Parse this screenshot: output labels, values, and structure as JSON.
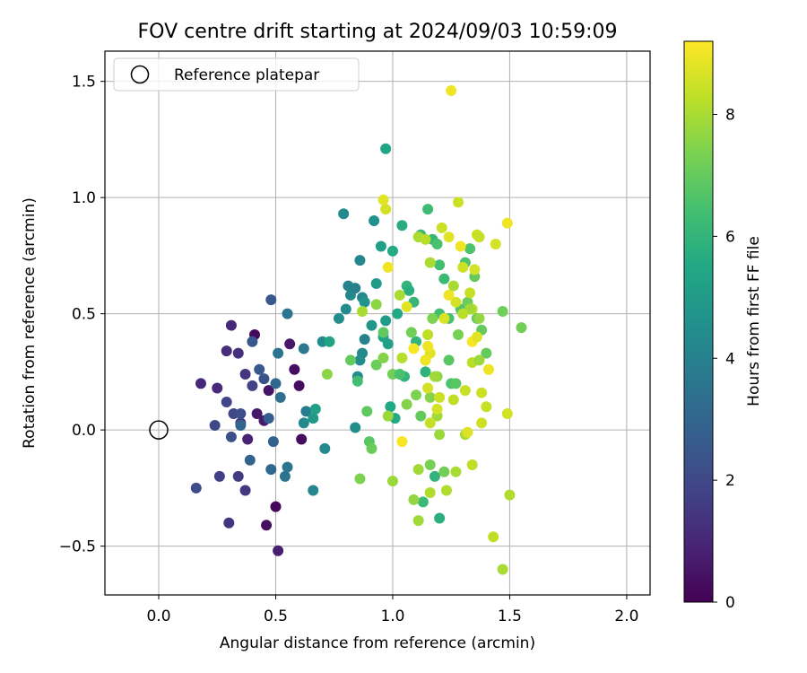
{
  "chart_data": {
    "type": "scatter",
    "title": "FOV centre drift starting at 2024/09/03 10:59:09",
    "xlabel": "Angular distance from reference (arcmin)",
    "ylabel": "Rotation from reference (arcmin)",
    "xlim": [
      -0.23,
      2.1
    ],
    "ylim": [
      -0.71,
      1.63
    ],
    "x_ticks": [
      0.0,
      0.5,
      1.0,
      1.5,
      2.0
    ],
    "x_tick_labels": [
      "0.0",
      "0.5",
      "1.0",
      "1.5",
      "2.0"
    ],
    "y_ticks": [
      -0.5,
      0.0,
      0.5,
      1.0,
      1.5
    ],
    "y_tick_labels": [
      "−0.5",
      "0.0",
      "0.5",
      "1.0",
      "1.5"
    ],
    "grid": true,
    "legend": {
      "placement": "top-left",
      "entries": [
        "Reference platepar"
      ]
    },
    "reference_point": {
      "x": 0.0,
      "y": 0.0,
      "label": "Reference platepar"
    },
    "colorbar": {
      "label": "Hours from first FF file",
      "colormap": "viridis",
      "range": [
        0,
        9.2
      ],
      "ticks": [
        0,
        2,
        4,
        6,
        8
      ],
      "tick_labels": [
        "0",
        "2",
        "4",
        "6",
        "8"
      ]
    },
    "points": [
      [
        0.41,
        0.41,
        0.2
      ],
      [
        0.5,
        -0.33,
        0.2
      ],
      [
        0.46,
        -0.41,
        0.4
      ],
      [
        0.58,
        0.26,
        0.3
      ],
      [
        0.6,
        0.19,
        0.3
      ],
      [
        0.61,
        -0.04,
        0.3
      ],
      [
        0.51,
        -0.52,
        0.8
      ],
      [
        0.56,
        0.37,
        0.6
      ],
      [
        0.45,
        0.04,
        0.7
      ],
      [
        0.47,
        0.17,
        0.5
      ],
      [
        0.42,
        0.07,
        0.6
      ],
      [
        0.38,
        -0.04,
        0.9
      ],
      [
        0.31,
        0.45,
        1.0
      ],
      [
        0.18,
        0.2,
        1.0
      ],
      [
        0.25,
        0.18,
        1.1
      ],
      [
        0.29,
        0.34,
        1.2
      ],
      [
        0.34,
        0.33,
        1.3
      ],
      [
        0.37,
        0.24,
        1.4
      ],
      [
        0.35,
        0.03,
        1.5
      ],
      [
        0.34,
        -0.2,
        1.6
      ],
      [
        0.37,
        -0.26,
        1.5
      ],
      [
        0.3,
        -0.4,
        1.4
      ],
      [
        0.26,
        -0.2,
        1.7
      ],
      [
        0.4,
        0.19,
        1.8
      ],
      [
        0.29,
        0.12,
        1.9
      ],
      [
        0.32,
        0.07,
        2.0
      ],
      [
        0.35,
        0.07,
        2.2
      ],
      [
        0.31,
        -0.03,
        2.2
      ],
      [
        0.24,
        0.02,
        2.0
      ],
      [
        0.16,
        -0.25,
        2.1
      ],
      [
        0.4,
        0.38,
        2.5
      ],
      [
        0.45,
        0.22,
        2.4
      ],
      [
        0.48,
        0.56,
        2.5
      ],
      [
        0.43,
        0.26,
        2.6
      ],
      [
        0.47,
        0.05,
        2.7
      ],
      [
        0.5,
        0.2,
        3.1
      ],
      [
        0.35,
        0.02,
        3.0
      ],
      [
        0.39,
        -0.13,
        2.9
      ],
      [
        0.49,
        -0.05,
        2.9
      ],
      [
        0.48,
        -0.17,
        3.1
      ],
      [
        0.52,
        0.14,
        3.3
      ],
      [
        0.55,
        0.5,
        3.6
      ],
      [
        0.51,
        0.33,
        3.5
      ],
      [
        0.55,
        -0.16,
        3.6
      ],
      [
        0.54,
        -0.2,
        3.5
      ],
      [
        0.62,
        0.35,
        3.7
      ],
      [
        0.63,
        0.08,
        3.8
      ],
      [
        0.62,
        0.03,
        4.3
      ],
      [
        0.66,
        -0.26,
        4.2
      ],
      [
        0.71,
        -0.08,
        4.3
      ],
      [
        0.7,
        0.38,
        4.4
      ],
      [
        0.66,
        0.05,
        4.9
      ],
      [
        0.67,
        0.09,
        5.2
      ],
      [
        0.73,
        0.38,
        5.3
      ],
      [
        0.79,
        0.93,
        4.3
      ],
      [
        0.77,
        0.48,
        4.5
      ],
      [
        0.8,
        0.52,
        4.4
      ],
      [
        0.82,
        0.58,
        4.3
      ],
      [
        0.81,
        0.62,
        4.1
      ],
      [
        0.84,
        0.61,
        4.0
      ],
      [
        0.87,
        0.57,
        4.2
      ],
      [
        0.86,
        0.73,
        4.2
      ],
      [
        0.88,
        0.39,
        4.1
      ],
      [
        0.87,
        0.33,
        4.3
      ],
      [
        0.86,
        0.3,
        4.4
      ],
      [
        0.85,
        0.23,
        4.4
      ],
      [
        0.84,
        0.01,
        4.5
      ],
      [
        0.88,
        0.55,
        4.7
      ],
      [
        0.92,
        0.9,
        4.6
      ],
      [
        0.91,
        0.45,
        4.8
      ],
      [
        0.93,
        0.63,
        5.0
      ],
      [
        0.95,
        0.79,
        5.2
      ],
      [
        0.97,
        0.47,
        5.0
      ],
      [
        0.96,
        0.4,
        5.3
      ],
      [
        0.98,
        0.37,
        5.2
      ],
      [
        0.97,
        1.21,
        5.4
      ],
      [
        1.0,
        0.77,
        5.6
      ],
      [
        1.02,
        0.5,
        5.5
      ],
      [
        1.04,
        0.88,
        5.7
      ],
      [
        1.06,
        0.62,
        6.0
      ],
      [
        1.07,
        0.6,
        5.8
      ],
      [
        1.09,
        0.55,
        6.1
      ],
      [
        1.1,
        0.38,
        6.0
      ],
      [
        1.12,
        0.84,
        6.2
      ],
      [
        1.15,
        0.95,
        6.3
      ],
      [
        1.17,
        0.82,
        6.1
      ],
      [
        1.19,
        0.8,
        6.5
      ],
      [
        1.2,
        0.71,
        6.4
      ],
      [
        1.22,
        0.65,
        6.2
      ],
      [
        1.2,
        0.5,
        6.4
      ],
      [
        1.24,
        0.48,
        6.5
      ],
      [
        1.25,
        0.2,
        6.6
      ],
      [
        1.27,
        0.2,
        6.8
      ],
      [
        1.29,
        0.52,
        6.7
      ],
      [
        1.31,
        0.72,
        6.6
      ],
      [
        1.33,
        0.78,
        6.6
      ],
      [
        1.35,
        0.66,
        7.0
      ],
      [
        1.32,
        0.55,
        7.1
      ],
      [
        1.36,
        0.48,
        6.9
      ],
      [
        1.38,
        0.43,
        7.0
      ],
      [
        1.4,
        0.33,
        7.0
      ],
      [
        1.47,
        0.51,
        7.2
      ],
      [
        1.55,
        0.44,
        7.2
      ],
      [
        0.96,
        0.42,
        6.9
      ],
      [
        0.99,
        0.1,
        5.5
      ],
      [
        1.01,
        0.05,
        5.6
      ],
      [
        1.05,
        0.23,
        6.0
      ],
      [
        1.14,
        0.25,
        5.9
      ],
      [
        1.2,
        -0.38,
        5.8
      ],
      [
        1.13,
        -0.31,
        6.2
      ],
      [
        1.18,
        -0.2,
        6.0
      ],
      [
        1.22,
        -0.18,
        7.2
      ],
      [
        1.16,
        -0.15,
        7.3
      ],
      [
        1.12,
        0.06,
        7.0
      ],
      [
        1.16,
        0.14,
        7.5
      ],
      [
        1.19,
        0.23,
        7.6
      ],
      [
        1.1,
        0.15,
        7.4
      ],
      [
        1.14,
        0.3,
        7.3
      ],
      [
        1.24,
        0.3,
        6.8
      ],
      [
        1.28,
        0.41,
        7.3
      ],
      [
        0.82,
        0.3,
        7.0
      ],
      [
        0.85,
        0.21,
        6.4
      ],
      [
        0.89,
        0.08,
        6.9
      ],
      [
        0.9,
        -0.05,
        6.8
      ],
      [
        0.91,
        -0.08,
        7.1
      ],
      [
        0.86,
        -0.21,
        7.4
      ],
      [
        0.93,
        0.28,
        7.1
      ],
      [
        0.96,
        0.31,
        7.5
      ],
      [
        1.0,
        0.24,
        7.2
      ],
      [
        1.03,
        0.24,
        6.5
      ],
      [
        1.06,
        0.11,
        7.5
      ],
      [
        1.08,
        0.42,
        7.2
      ],
      [
        0.72,
        0.24,
        7.6
      ],
      [
        0.93,
        0.54,
        7.6
      ],
      [
        0.98,
        0.06,
        7.8
      ],
      [
        1.0,
        -0.22,
        7.8
      ],
      [
        1.09,
        -0.3,
        7.7
      ],
      [
        1.11,
        -0.39,
        7.9
      ],
      [
        1.11,
        -0.17,
        7.9
      ],
      [
        1.19,
        0.06,
        7.9
      ],
      [
        1.2,
        -0.02,
        7.8
      ],
      [
        1.23,
        -0.26,
        8.1
      ],
      [
        1.27,
        -0.18,
        8.0
      ],
      [
        1.31,
        -0.02,
        8.0
      ],
      [
        1.34,
        -0.15,
        8.3
      ],
      [
        1.38,
        0.03,
        8.5
      ],
      [
        1.43,
        -0.46,
        8.3
      ],
      [
        1.47,
        -0.6,
        8.0
      ],
      [
        1.5,
        -0.28,
        8.1
      ],
      [
        1.49,
        0.07,
        8.6
      ],
      [
        1.4,
        0.1,
        8.4
      ],
      [
        1.38,
        0.16,
        8.5
      ],
      [
        1.34,
        0.29,
        8.2
      ],
      [
        1.37,
        0.3,
        7.8
      ],
      [
        1.31,
        0.17,
        8.4
      ],
      [
        1.26,
        0.13,
        8.3
      ],
      [
        1.2,
        0.14,
        8.5
      ],
      [
        1.19,
        0.09,
        8.6
      ],
      [
        1.16,
        0.03,
        8.4
      ],
      [
        1.15,
        0.18,
        8.6
      ],
      [
        1.16,
        0.33,
        8.8
      ],
      [
        1.15,
        0.36,
        9.0
      ],
      [
        1.14,
        0.3,
        9.0
      ],
      [
        1.09,
        0.35,
        9.1
      ],
      [
        1.04,
        0.31,
        8.2
      ],
      [
        1.03,
        0.58,
        8.0
      ],
      [
        1.06,
        0.53,
        8.8
      ],
      [
        1.04,
        -0.05,
        9.1
      ],
      [
        0.98,
        0.7,
        9.0
      ],
      [
        0.97,
        0.95,
        8.6
      ],
      [
        0.96,
        0.99,
        8.8
      ],
      [
        0.87,
        0.51,
        8.0
      ],
      [
        1.11,
        0.83,
        8.0
      ],
      [
        1.14,
        0.82,
        8.2
      ],
      [
        1.16,
        0.72,
        8.0
      ],
      [
        1.17,
        0.48,
        7.4
      ],
      [
        1.21,
        0.87,
        8.5
      ],
      [
        1.24,
        0.83,
        8.8
      ],
      [
        1.26,
        0.62,
        8.0
      ],
      [
        1.27,
        0.55,
        8.6
      ],
      [
        1.28,
        0.98,
        8.5
      ],
      [
        1.29,
        0.79,
        9.0
      ],
      [
        1.3,
        0.7,
        8.5
      ],
      [
        1.33,
        0.59,
        8.4
      ],
      [
        1.35,
        0.69,
        8.6
      ],
      [
        1.36,
        0.84,
        8.5
      ],
      [
        1.37,
        0.83,
        8.4
      ],
      [
        1.44,
        0.8,
        8.6
      ],
      [
        1.49,
        0.89,
        9.0
      ],
      [
        1.34,
        0.52,
        8.3
      ],
      [
        1.37,
        0.48,
        7.7
      ],
      [
        1.34,
        0.38,
        9.1
      ],
      [
        1.36,
        0.4,
        8.8
      ],
      [
        1.41,
        0.26,
        9.0
      ],
      [
        1.33,
        0.52,
        7.9
      ],
      [
        1.3,
        0.5,
        8.2
      ],
      [
        1.25,
        1.46,
        9.0
      ],
      [
        1.22,
        0.48,
        8.7
      ],
      [
        1.24,
        0.58,
        9.0
      ],
      [
        1.15,
        0.41,
        8.3
      ],
      [
        1.18,
        0.23,
        7.9
      ],
      [
        1.16,
        -0.27,
        8.1
      ],
      [
        1.32,
        -0.01,
        8.7
      ]
    ]
  }
}
